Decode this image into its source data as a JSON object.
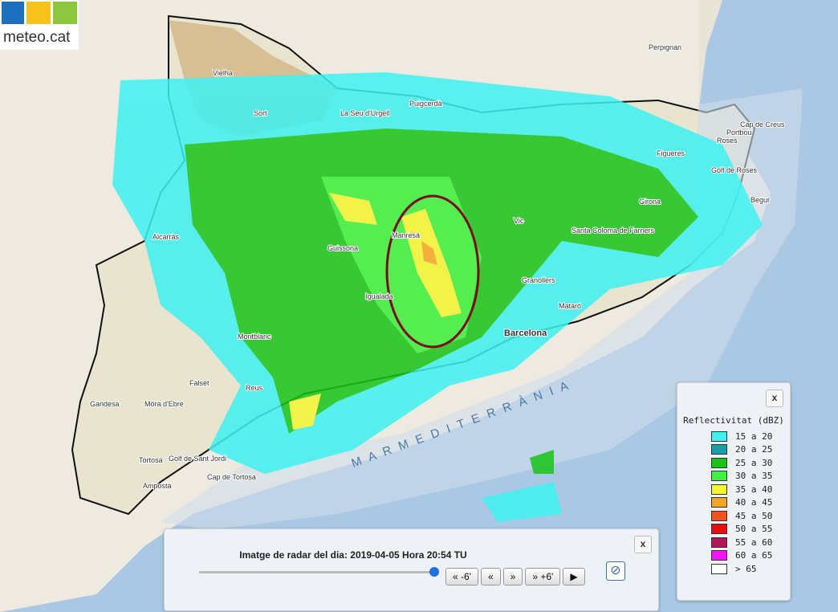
{
  "logo": {
    "text": "meteo.cat"
  },
  "map": {
    "labels": [
      "Perpignan",
      "Portbou",
      "Figueres",
      "Cap de Creus",
      "Roses",
      "Golf de Roses",
      "Girona",
      "Vielha",
      "Sort",
      "Puigcerdà",
      "La Seu d'Urgell",
      "Vic",
      "Santa Coloma de Farners",
      "Granollers",
      "Mataró",
      "Barcelona",
      "Igualada",
      "Guissona",
      "Montblanc",
      "Reus",
      "Falset",
      "Móra d'Ebre",
      "Gandesa",
      "Tortosa",
      "Amposta",
      "Golf de Sant Jordi",
      "Cap de Tortosa",
      "Alcarràs",
      "Manresa",
      "Begur"
    ],
    "sea_label": "M A R   M E D I T E R R À N I A"
  },
  "legend": {
    "close": "x",
    "title": "Reflectivitat (dBZ)",
    "items": [
      {
        "label": "15 a 20",
        "color": "#3ef2f2"
      },
      {
        "label": "20 a 25",
        "color": "#16a0a8"
      },
      {
        "label": "25 a 30",
        "color": "#18c418"
      },
      {
        "label": "30 a 35",
        "color": "#3cf03c"
      },
      {
        "label": "35 a 40",
        "color": "#f5f532"
      },
      {
        "label": "40 a 45",
        "color": "#f5a623"
      },
      {
        "label": "45 a 50",
        "color": "#f5501e"
      },
      {
        "label": "50 a 55",
        "color": "#e60f0f"
      },
      {
        "label": "55 a 60",
        "color": "#b4145a"
      },
      {
        "label": "60 a 65",
        "color": "#f514f5"
      },
      {
        "label": "> 65",
        "color": "#ffffff"
      }
    ]
  },
  "player": {
    "close": "x",
    "caption": "Imatge de radar del dia: 2019-04-05 Hora 20:54 TU",
    "buttons": [
      "« -6'",
      "«",
      "»",
      "» +6'",
      "▶"
    ]
  }
}
